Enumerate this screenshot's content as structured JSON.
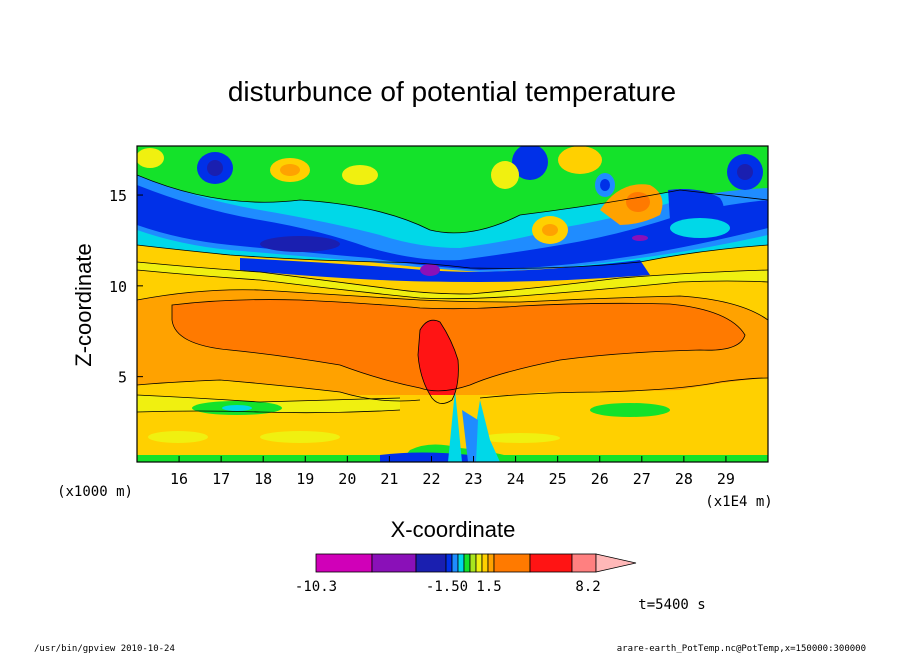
{
  "chart_data": {
    "type": "heatmap",
    "title": "disturbunce of potential temperature",
    "xlabel": "X-coordinate",
    "ylabel": "Z-coordinate",
    "x_unit_label": "(x1E4 m)",
    "y_unit_label": "(x1000 m)",
    "x_ticks": [
      "16",
      "17",
      "18",
      "19",
      "20",
      "21",
      "22",
      "23",
      "24",
      "25",
      "26",
      "27",
      "28",
      "29"
    ],
    "y_ticks": [
      "5",
      "10",
      "15"
    ],
    "xlim": [
      15,
      30
    ],
    "ylim": [
      0.3,
      17.7
    ],
    "colorbar": {
      "colors": [
        "#d000b8",
        "#8a10b8",
        "#1a1fb0",
        "#0030e8",
        "#1f8cff",
        "#00d8e8",
        "#14e22a",
        "#a8e51e",
        "#f0f010",
        "#ffd000",
        "#ffa200",
        "#ff7a00",
        "#ff1414",
        "#ff8080",
        "#ffb8b8"
      ],
      "labels": [
        "-10.3",
        "-1.50",
        "1.5",
        "8.2"
      ],
      "triangle_end": "right"
    },
    "blobs": [
      {
        "x": 22.0,
        "z": 7.0,
        "rx": 0.28,
        "rz": 3.2,
        "value": "strong-positive",
        "color": "#ff1414"
      },
      {
        "x": 21.9,
        "z": 10.8,
        "rx": 0.25,
        "rz": 0.4,
        "value": "strong-negative",
        "color": "#8a10b8"
      },
      {
        "x": 26.9,
        "z": 14.8,
        "rx": 0.5,
        "rz": 1.0,
        "value": "positive",
        "color": "#ff7a00"
      }
    ]
  },
  "time_label": "t=5400 s",
  "footer": {
    "left": "/usr/bin/gpview   2010-10-24",
    "right": "arare-earth_PotTemp.nc@PotTemp,x=150000:300000"
  }
}
